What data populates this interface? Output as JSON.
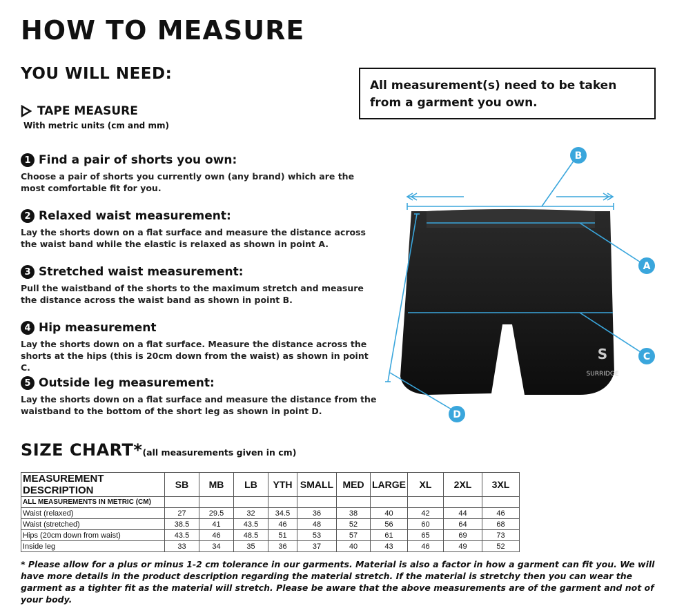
{
  "title": "HOW TO MEASURE",
  "need_heading": "YOU WILL NEED:",
  "tape": {
    "label": "TAPE MEASURE",
    "sub": "With metric units (cm and mm)"
  },
  "note": "All measurement(s) need to be taken from a garment you own.",
  "steps": [
    {
      "num": "1",
      "title": "Find a pair of shorts you own:",
      "text": "Choose a pair of shorts you currently own (any brand) which are the most comfortable fit for you."
    },
    {
      "num": "2",
      "title": "Relaxed waist measurement:",
      "text": "Lay the shorts down on a flat surface and measure the distance across the waist band while the elastic is relaxed as shown in point A."
    },
    {
      "num": "3",
      "title": "Stretched waist measurement:",
      "text": "Pull the waistband of the shorts to the maximum stretch and measure the distance across the waist band as shown in point B."
    },
    {
      "num": "4",
      "title": "Hip measurement",
      "text": "Lay the shorts down on a flat surface. Measure the distance across the shorts at the hips (this is 20cm down from the waist)  as shown in point C."
    },
    {
      "num": "5",
      "title": "Outside leg measurement:",
      "text": "Lay the shorts down on a flat surface and measure the distance from the waistband to the bottom of the short leg as shown in point D."
    }
  ],
  "diagram": {
    "points": [
      "A",
      "B",
      "C",
      "D"
    ],
    "brand": "SURRIDGE",
    "accent": "#3aa6dc"
  },
  "size_chart": {
    "title": "SIZE CHART*",
    "note": "(all measurements given in cm)",
    "headers": [
      "MEASUREMENT DESCRIPTION",
      "SB",
      "MB",
      "LB",
      "YTH",
      "SMALL",
      "MED",
      "LARGE",
      "XL",
      "2XL",
      "3XL"
    ],
    "subheader": "ALL MEASUREMENTS IN METRIC (CM)",
    "rows": [
      [
        "Waist (relaxed)",
        "27",
        "29.5",
        "32",
        "34.5",
        "36",
        "38",
        "40",
        "42",
        "44",
        "46"
      ],
      [
        "Waist (stretched)",
        "38.5",
        "41",
        "43.5",
        "46",
        "48",
        "52",
        "56",
        "60",
        "64",
        "68"
      ],
      [
        "Hips (20cm down from waist)",
        "43.5",
        "46",
        "48.5",
        "51",
        "53",
        "57",
        "61",
        "65",
        "69",
        "73"
      ],
      [
        "Inside leg",
        "33",
        "34",
        "35",
        "36",
        "37",
        "40",
        "43",
        "46",
        "49",
        "52"
      ]
    ]
  },
  "footnote": "* Please allow for a plus or minus 1-2 cm tolerance in our garments. Material is also a factor in how a garment can fit you. We will have more details in the product description regarding the material stretch.  If the material is stretchy then you can wear the garment as a tighter fit as the material will stretch.  Please be aware that the above measurements are of the garment and not of your body."
}
